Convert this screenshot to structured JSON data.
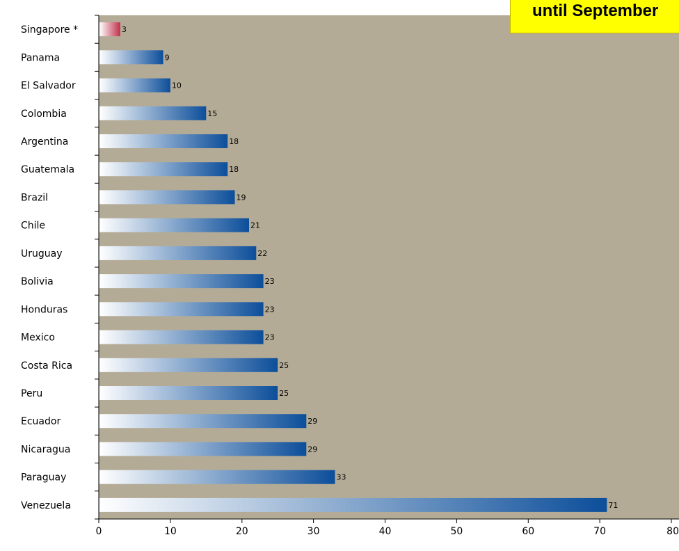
{
  "banner": {
    "text": "until September"
  },
  "colors": {
    "plot_background": "#b4ab96",
    "bar_dark": "#0c4e9a",
    "bar_light": "#ffffff",
    "highlight_dark": "#c0304a",
    "highlight_light": "#ffffff"
  },
  "chart_data": {
    "type": "bar",
    "orientation": "horizontal",
    "title": "",
    "xlabel": "",
    "ylabel": "",
    "xlim": [
      0,
      80
    ],
    "x_ticks": [
      0,
      10,
      20,
      30,
      40,
      50,
      60,
      70,
      80
    ],
    "grid": false,
    "categories": [
      "Singapore *",
      "Panama",
      "El Salvador",
      "Colombia",
      "Argentina",
      "Guatemala",
      "Brazil",
      "Chile",
      "Uruguay",
      "Bolivia",
      "Honduras",
      "Mexico",
      "Costa Rica",
      "Peru",
      "Ecuador",
      "Nicaragua",
      "Paraguay",
      "Venezuela"
    ],
    "values": [
      3,
      9,
      10,
      15,
      18,
      18,
      19,
      21,
      22,
      23,
      23,
      23,
      25,
      25,
      29,
      29,
      33,
      71
    ],
    "highlighted": [
      "Singapore *"
    ]
  }
}
